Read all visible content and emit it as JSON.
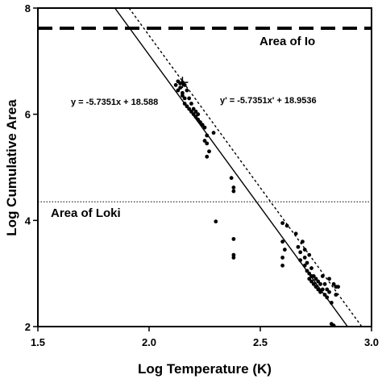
{
  "chart_data": {
    "type": "scatter",
    "xlabel": "Log  Temperature (K)",
    "ylabel": "Log Cumulative Area",
    "xlim": [
      1.5,
      3.0
    ],
    "ylim": [
      2,
      8
    ],
    "xticks": [
      {
        "value": 1.5,
        "label": "1.5"
      },
      {
        "value": 2.0,
        "label": "2.0"
      },
      {
        "value": 2.5,
        "label": "2.5"
      },
      {
        "value": 3.0,
        "label": "3.0"
      }
    ],
    "yticks": [
      {
        "value": 2,
        "label": "2"
      },
      {
        "value": 4,
        "label": "4"
      },
      {
        "value": 6,
        "label": "6"
      },
      {
        "value": 8,
        "label": "8"
      }
    ],
    "grid": false,
    "fit_lines": [
      {
        "equation": "y = -5.7351x + 18.588",
        "slope": -5.7351,
        "intercept": 18.588,
        "style": "solid"
      },
      {
        "equation": "y' = -5.7351x' + 18.9536",
        "slope": -5.7351,
        "intercept": 18.9536,
        "style": "dotted"
      }
    ],
    "reference_lines": [
      {
        "label": "Area of Io",
        "y": 7.62,
        "style": "dashed"
      },
      {
        "label": "Area of Loki",
        "y": 4.35,
        "style": "dotted"
      }
    ],
    "points": [
      [
        2.12,
        6.55
      ],
      [
        2.13,
        6.45
      ],
      [
        2.13,
        6.62
      ],
      [
        2.14,
        6.58
      ],
      [
        2.14,
        6.5
      ],
      [
        2.15,
        6.4
      ],
      [
        2.15,
        6.6
      ],
      [
        2.15,
        6.35
      ],
      [
        2.16,
        6.55
      ],
      [
        2.16,
        6.3
      ],
      [
        2.16,
        6.2
      ],
      [
        2.17,
        6.45
      ],
      [
        2.17,
        6.15
      ],
      [
        2.18,
        6.3
      ],
      [
        2.18,
        6.1
      ],
      [
        2.19,
        6.05
      ],
      [
        2.19,
        6.2
      ],
      [
        2.2,
        6.0
      ],
      [
        2.2,
        6.1
      ],
      [
        2.21,
        5.95
      ],
      [
        2.21,
        6.05
      ],
      [
        2.22,
        5.9
      ],
      [
        2.22,
        6.0
      ],
      [
        2.23,
        5.85
      ],
      [
        2.24,
        5.8
      ],
      [
        2.25,
        5.75
      ],
      [
        2.25,
        5.5
      ],
      [
        2.26,
        5.6
      ],
      [
        2.26,
        5.2
      ],
      [
        2.26,
        5.45
      ],
      [
        2.27,
        5.3
      ],
      [
        2.29,
        5.65
      ],
      [
        2.3,
        3.98
      ],
      [
        2.37,
        4.8
      ],
      [
        2.38,
        4.62
      ],
      [
        2.38,
        4.55
      ],
      [
        2.38,
        3.65
      ],
      [
        2.38,
        3.3
      ],
      [
        2.38,
        3.35
      ],
      [
        2.6,
        3.95
      ],
      [
        2.6,
        3.6
      ],
      [
        2.6,
        3.3
      ],
      [
        2.6,
        3.15
      ],
      [
        2.61,
        3.45
      ],
      [
        2.62,
        3.9
      ],
      [
        2.66,
        3.75
      ],
      [
        2.67,
        3.5
      ],
      [
        2.68,
        3.4
      ],
      [
        2.68,
        3.25
      ],
      [
        2.69,
        3.6
      ],
      [
        2.7,
        3.45
      ],
      [
        2.7,
        3.3
      ],
      [
        2.7,
        3.15
      ],
      [
        2.71,
        3.2
      ],
      [
        2.71,
        3.05
      ],
      [
        2.72,
        3.35
      ],
      [
        2.72,
        3.0
      ],
      [
        2.72,
        2.9
      ],
      [
        2.73,
        2.95
      ],
      [
        2.73,
        3.1
      ],
      [
        2.73,
        2.85
      ],
      [
        2.74,
        2.8
      ],
      [
        2.74,
        2.95
      ],
      [
        2.75,
        2.75
      ],
      [
        2.75,
        2.9
      ],
      [
        2.76,
        2.7
      ],
      [
        2.76,
        2.85
      ],
      [
        2.77,
        2.65
      ],
      [
        2.77,
        2.8
      ],
      [
        2.78,
        2.7
      ],
      [
        2.78,
        2.95
      ],
      [
        2.79,
        2.6
      ],
      [
        2.79,
        2.8
      ],
      [
        2.8,
        2.55
      ],
      [
        2.8,
        2.7
      ],
      [
        2.81,
        2.65
      ],
      [
        2.81,
        2.9
      ],
      [
        2.82,
        2.45
      ],
      [
        2.83,
        2.8
      ],
      [
        2.84,
        2.6
      ],
      [
        2.84,
        2.75
      ],
      [
        2.85,
        2.75
      ],
      [
        2.82,
        2.05
      ],
      [
        2.83,
        2.02
      ]
    ],
    "marker": {
      "type": "plus",
      "x": 2.15,
      "y": 6.6
    }
  }
}
